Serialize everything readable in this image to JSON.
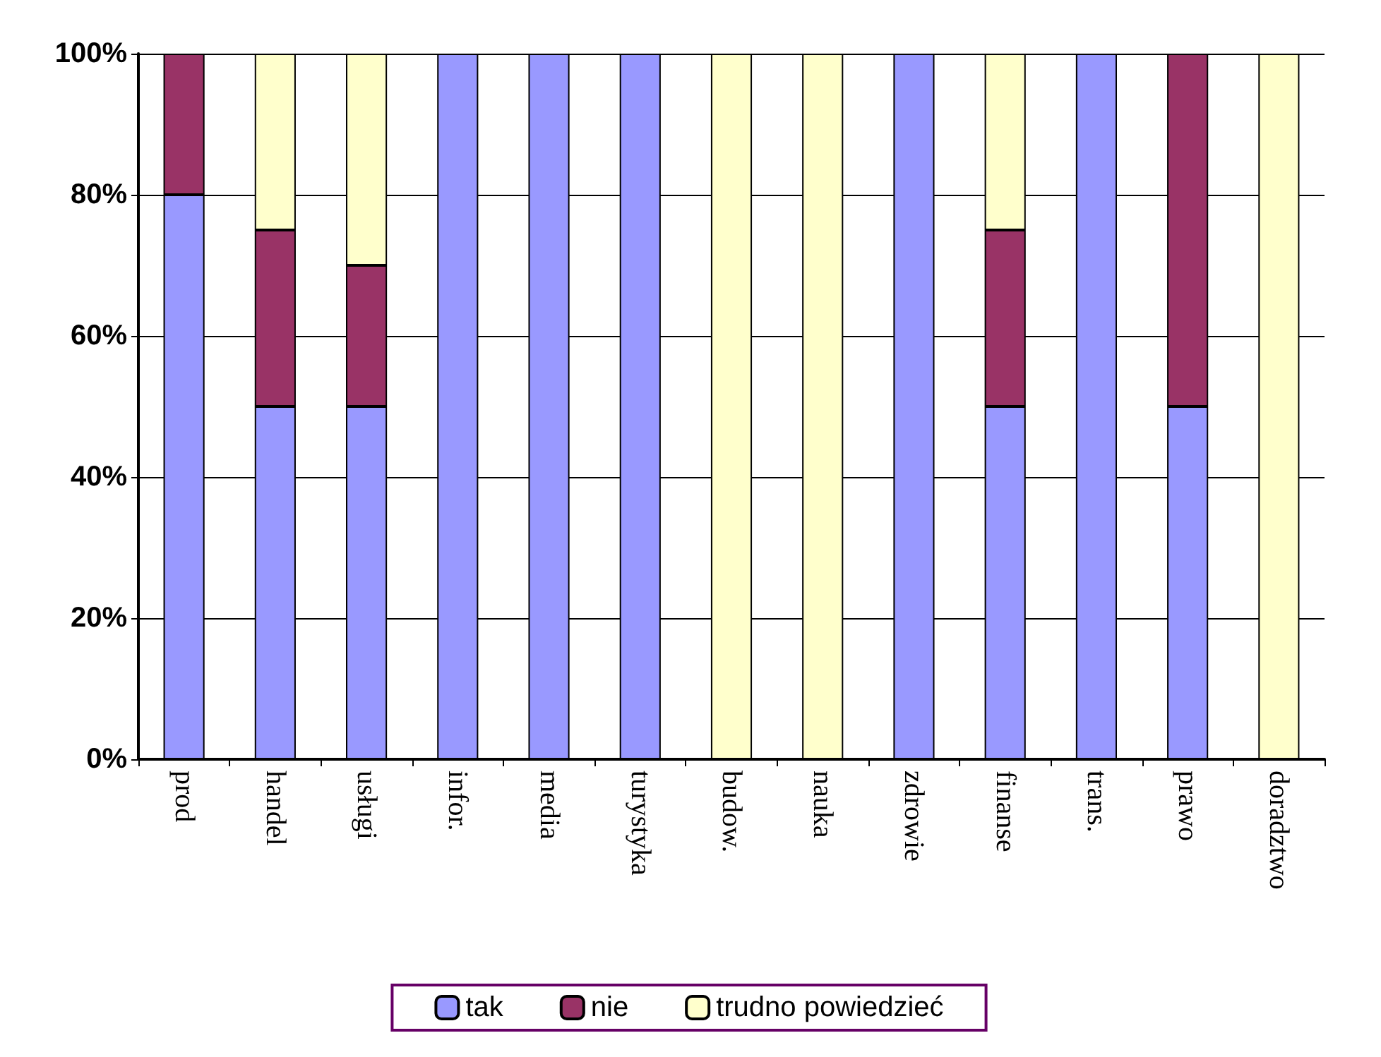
{
  "chart_data": {
    "type": "bar",
    "stacked": true,
    "categories": [
      "prod",
      "handel",
      "usługi",
      "infor.",
      "media",
      "turystyka",
      "budow.",
      "nauka",
      "zdrowie",
      "finanse",
      "trans.",
      "prawo",
      "doradztwo"
    ],
    "series": [
      {
        "name": "tak",
        "color": "#9999ff",
        "values": [
          80,
          50,
          50,
          100,
          100,
          100,
          0,
          0,
          100,
          50,
          100,
          50,
          0
        ]
      },
      {
        "name": "nie",
        "color": "#993366",
        "values": [
          20,
          25,
          20,
          0,
          0,
          0,
          0,
          0,
          0,
          25,
          0,
          50,
          0
        ]
      },
      {
        "name": "trudno powiedzieć",
        "color": "#ffffcc",
        "values": [
          0,
          25,
          30,
          0,
          0,
          0,
          100,
          100,
          0,
          25,
          0,
          0,
          100
        ]
      }
    ],
    "ylim": [
      0,
      100
    ],
    "yticks": [
      {
        "value": 0,
        "label": "0%"
      },
      {
        "value": 20,
        "label": "20%"
      },
      {
        "value": 40,
        "label": "40%"
      },
      {
        "value": 60,
        "label": "60%"
      },
      {
        "value": 80,
        "label": "80%"
      },
      {
        "value": 100,
        "label": "100%"
      }
    ],
    "grid": "y",
    "legend": "bottom"
  }
}
